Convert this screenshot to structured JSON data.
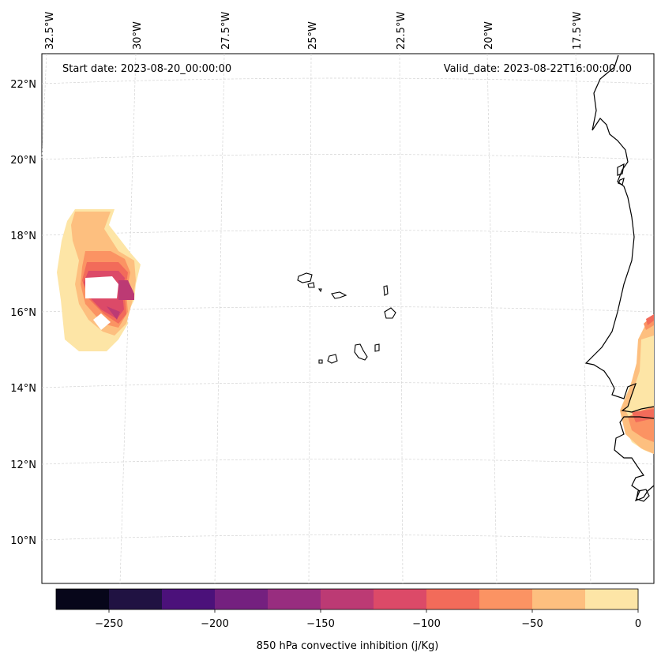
{
  "map": {
    "start_date": "Start date: 2023-08-20_00:00:00",
    "valid_date": "Valid_date: 2023-08-22T16:00:00.00",
    "lon_labels": [
      "32.5°W",
      "30°W",
      "27.5°W",
      "25°W",
      "22.5°W",
      "20°W",
      "17.5°W"
    ],
    "lat_labels": [
      "22°N",
      "20°N",
      "18°N",
      "16°N",
      "14°N",
      "12°N",
      "10°N"
    ]
  },
  "colorbar": {
    "title": "850 hPa convective inhibition (j/Kg)",
    "tick_labels": [
      "−250",
      "−200",
      "−150",
      "−100",
      "−50",
      "0"
    ],
    "colors": [
      "#07061a",
      "#201242",
      "#4b117a",
      "#74207f",
      "#982d7f",
      "#bc3a74",
      "#dc4a68",
      "#f26b5a",
      "#fb9363",
      "#fdbf7f",
      "#fde5a6"
    ]
  },
  "colors": {
    "coast": "#000000",
    "grid": "#d0d0d0",
    "cin_pale": "#fde5a6",
    "cin_light_orange": "#fdbf7f",
    "cin_orange": "#fb9363",
    "cin_red": "#f26b5a",
    "cin_magenta": "#dc4a68",
    "cin_purple": "#bc3a74"
  }
}
